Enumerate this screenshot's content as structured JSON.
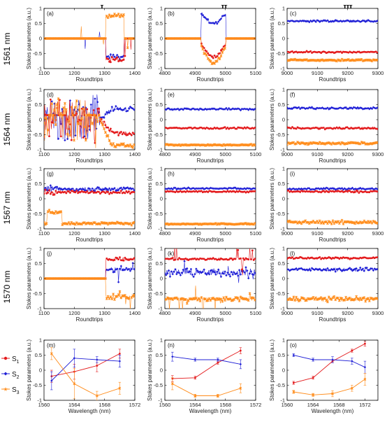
{
  "figure": {
    "columns": [
      "Ⅰ",
      "Ⅱ",
      "Ⅲ"
    ],
    "rows": [
      "1561 nm",
      "1564 nm",
      "1567 nm",
      "1570 nm"
    ],
    "legend": [
      {
        "base": "S",
        "sub": "1",
        "color": "#e31a1c",
        "marker": "circle"
      },
      {
        "base": "S",
        "sub": "2",
        "color": "#1f1fd6",
        "marker": "diamond"
      },
      {
        "base": "S",
        "sub": "3",
        "color": "#ff8c1a",
        "marker": "star"
      }
    ]
  },
  "colors": {
    "s1": "#e31a1c",
    "s2": "#1f1fd6",
    "s3": "#ff8c1a",
    "axis": "#000000"
  },
  "chart_data": [
    {
      "id": "a",
      "label": "(a)",
      "row": 0,
      "col": 0,
      "type": "scatter",
      "xlabel": "Roundtrips",
      "ylabel": "Stokes parameters (a.u.)",
      "xlim": [
        1100,
        1400
      ],
      "xticks": [
        1100,
        1200,
        1300,
        1400
      ],
      "ylim": [
        -1,
        1
      ],
      "yticks": [
        -1,
        -0.5,
        0,
        0.5,
        1
      ],
      "pattern": "c1a",
      "series": [
        {
          "key": "s1",
          "mean": 0,
          "noise": 0.1
        },
        {
          "key": "s2",
          "mean": 0,
          "noise": 0.1
        },
        {
          "key": "s3",
          "mean": 0,
          "noise": 0.1
        }
      ]
    },
    {
      "id": "b",
      "label": "(b)",
      "row": 0,
      "col": 1,
      "type": "scatter",
      "xlabel": "Roundtrips",
      "ylabel": "Stokes parameters (a.u.)",
      "xlim": [
        4800,
        5100
      ],
      "xticks": [
        4800,
        4900,
        5000,
        5100
      ],
      "ylim": [
        -1,
        1
      ],
      "yticks": [
        -1,
        -0.5,
        0,
        0.5,
        1
      ],
      "pattern": "c2a",
      "series": [
        {
          "key": "s1",
          "mean": -0.35,
          "noise": 0.1
        },
        {
          "key": "s2",
          "mean": 0.7,
          "noise": 0.15
        },
        {
          "key": "s3",
          "mean": -0.65,
          "noise": 0.1
        }
      ]
    },
    {
      "id": "c",
      "label": "(c)",
      "row": 0,
      "col": 2,
      "type": "scatter",
      "xlabel": "Roundtrips",
      "ylabel": "Stokes parameters (a.u.)",
      "xlim": [
        9000,
        9300
      ],
      "xticks": [
        9000,
        9100,
        9200,
        9300
      ],
      "ylim": [
        -1,
        1
      ],
      "yticks": [
        -1,
        -0.5,
        0,
        0.5,
        1
      ],
      "pattern": "flat",
      "series": [
        {
          "key": "s1",
          "mean": -0.45,
          "noise": 0.04
        },
        {
          "key": "s2",
          "mean": 0.58,
          "noise": 0.05
        },
        {
          "key": "s3",
          "mean": -0.72,
          "noise": 0.04
        }
      ]
    },
    {
      "id": "d",
      "label": "(d)",
      "row": 1,
      "col": 0,
      "type": "scatter",
      "xlabel": "Roundtrips",
      "ylabel": "Stokes parameters (a.u.)",
      "xlim": [
        1100,
        1400
      ],
      "xticks": [
        1100,
        1200,
        1300,
        1400
      ],
      "ylim": [
        -1,
        1
      ],
      "yticks": [
        -1,
        -0.5,
        0,
        0.5,
        1
      ],
      "pattern": "c1b",
      "series": [
        {
          "key": "s1",
          "mean": -0.45,
          "noise": 0.1
        },
        {
          "key": "s2",
          "mean": 0.35,
          "noise": 0.1
        },
        {
          "key": "s3",
          "mean": -0.85,
          "noise": 0.08
        }
      ]
    },
    {
      "id": "e",
      "label": "(e)",
      "row": 1,
      "col": 1,
      "type": "scatter",
      "xlabel": "Roundtrips",
      "ylabel": "Stokes parameters (a.u.)",
      "xlim": [
        4800,
        5100
      ],
      "xticks": [
        4800,
        4900,
        5000,
        5100
      ],
      "ylim": [
        -1,
        1
      ],
      "yticks": [
        -1,
        -0.5,
        0,
        0.5,
        1
      ],
      "pattern": "flat",
      "series": [
        {
          "key": "s1",
          "mean": -0.28,
          "noise": 0.04
        },
        {
          "key": "s2",
          "mean": 0.35,
          "noise": 0.04
        },
        {
          "key": "s3",
          "mean": -0.84,
          "noise": 0.03
        }
      ]
    },
    {
      "id": "f",
      "label": "(f)",
      "row": 1,
      "col": 2,
      "type": "scatter",
      "xlabel": "Roundtrips",
      "ylabel": "Stokes parameters (a.u.)",
      "xlim": [
        9000,
        9300
      ],
      "xticks": [
        9000,
        9100,
        9200,
        9300
      ],
      "ylim": [
        -1,
        1
      ],
      "yticks": [
        -1,
        -0.5,
        0,
        0.5,
        1
      ],
      "pattern": "flat",
      "series": [
        {
          "key": "s1",
          "mean": -0.28,
          "noise": 0.05
        },
        {
          "key": "s2",
          "mean": 0.38,
          "noise": 0.05
        },
        {
          "key": "s3",
          "mean": -0.78,
          "noise": 0.06
        }
      ]
    },
    {
      "id": "g",
      "label": "(g)",
      "row": 2,
      "col": 0,
      "type": "scatter",
      "xlabel": "Roundtrips",
      "ylabel": "Stokes parameters (a.u.)",
      "xlim": [
        1100,
        1400
      ],
      "xticks": [
        1100,
        1200,
        1300,
        1400
      ],
      "ylim": [
        -1,
        1
      ],
      "yticks": [
        -1,
        -0.5,
        0,
        0.5,
        1
      ],
      "pattern": "c1c",
      "series": [
        {
          "key": "s1",
          "mean": 0.22,
          "noise": 0.07
        },
        {
          "key": "s2",
          "mean": 0.32,
          "noise": 0.08
        },
        {
          "key": "s3",
          "mean": -0.82,
          "noise": 0.06
        }
      ]
    },
    {
      "id": "h",
      "label": "(h)",
      "row": 2,
      "col": 1,
      "type": "scatter",
      "xlabel": "Roundtrips",
      "ylabel": "Stokes parameters (a.u.)",
      "xlim": [
        4800,
        5100
      ],
      "xticks": [
        4800,
        4900,
        5000,
        5100
      ],
      "ylim": [
        -1,
        1
      ],
      "yticks": [
        -1,
        -0.5,
        0,
        0.5,
        1
      ],
      "pattern": "flat",
      "series": [
        {
          "key": "s1",
          "mean": 0.24,
          "noise": 0.04
        },
        {
          "key": "s2",
          "mean": 0.34,
          "noise": 0.04
        },
        {
          "key": "s3",
          "mean": -0.84,
          "noise": 0.03
        }
      ]
    },
    {
      "id": "i",
      "label": "(i)",
      "row": 2,
      "col": 2,
      "type": "scatter",
      "xlabel": "Roundtrips",
      "ylabel": "Stokes parameters (a.u.)",
      "xlim": [
        9000,
        9300
      ],
      "xticks": [
        9000,
        9100,
        9200,
        9300
      ],
      "ylim": [
        -1,
        1
      ],
      "yticks": [
        -1,
        -0.5,
        0,
        0.5,
        1
      ],
      "pattern": "flat",
      "series": [
        {
          "key": "s1",
          "mean": 0.24,
          "noise": 0.05
        },
        {
          "key": "s2",
          "mean": 0.33,
          "noise": 0.05
        },
        {
          "key": "s3",
          "mean": -0.78,
          "noise": 0.08
        }
      ]
    },
    {
      "id": "j",
      "label": "(j)",
      "row": 3,
      "col": 0,
      "type": "scatter",
      "xlabel": "Roundtrips",
      "ylabel": "Stokes parameters (a.u.)",
      "xlim": [
        1100,
        1400
      ],
      "xticks": [
        1100,
        1200,
        1300,
        1400
      ],
      "ylim": [
        -1,
        1
      ],
      "yticks": [
        -1,
        -0.5,
        0,
        0.5,
        1
      ],
      "pattern": "c1d",
      "series": [
        {
          "key": "s1",
          "mean": 0.65,
          "noise": 0.1
        },
        {
          "key": "s2",
          "mean": 0.3,
          "noise": 0.12
        },
        {
          "key": "s3",
          "mean": -0.6,
          "noise": 0.15
        }
      ]
    },
    {
      "id": "k",
      "label": "(k)",
      "row": 3,
      "col": 1,
      "type": "scatter",
      "xlabel": "Roundtrips",
      "ylabel": "Stokes parameters (a.u.)",
      "xlim": [
        4800,
        5100
      ],
      "xticks": [
        4800,
        4900,
        5000,
        5100
      ],
      "ylim": [
        -1,
        1
      ],
      "yticks": [
        -1,
        -0.5,
        0,
        0.5,
        1
      ],
      "pattern": "noisy",
      "series": [
        {
          "key": "s1",
          "mean": 0.65,
          "noise": 0.06
        },
        {
          "key": "s2",
          "mean": 0.2,
          "noise": 0.18
        },
        {
          "key": "s3",
          "mean": -0.68,
          "noise": 0.1
        }
      ]
    },
    {
      "id": "l",
      "label": "(l)",
      "row": 3,
      "col": 2,
      "type": "scatter",
      "xlabel": "Roundtrips",
      "ylabel": "Stokes parameters (a.u.)",
      "xlim": [
        9000,
        9300
      ],
      "xticks": [
        9000,
        9100,
        9200,
        9300
      ],
      "ylim": [
        -1,
        1
      ],
      "yticks": [
        -1,
        -0.5,
        0,
        0.5,
        1
      ],
      "pattern": "flat",
      "series": [
        {
          "key": "s1",
          "mean": 0.68,
          "noise": 0.05
        },
        {
          "key": "s2",
          "mean": 0.3,
          "noise": 0.08
        },
        {
          "key": "s3",
          "mean": -0.68,
          "noise": 0.1
        }
      ]
    },
    {
      "id": "m",
      "label": "(m)",
      "row": 4,
      "col": 0,
      "type": "line",
      "xlabel": "Wavelength (nm)",
      "ylabel": "Stokes parameters (a.u.)",
      "xlim": [
        1560,
        1572
      ],
      "xticks": [
        1560,
        1564,
        1568,
        1572
      ],
      "ylim": [
        -1,
        1
      ],
      "yticks": [
        -1,
        -0.5,
        0,
        0.5,
        1
      ],
      "x": [
        1561,
        1564,
        1567,
        1570
      ],
      "series": [
        {
          "key": "s1",
          "values": [
            -0.2,
            -0.05,
            0.15,
            0.55
          ],
          "errors": [
            0.2,
            0.25,
            0.2,
            0.15
          ]
        },
        {
          "key": "s2",
          "values": [
            -0.35,
            0.4,
            0.35,
            0.3
          ],
          "errors": [
            0.3,
            0.3,
            0.1,
            0.2
          ]
        },
        {
          "key": "s3",
          "values": [
            0.55,
            -0.45,
            -0.85,
            -0.6
          ],
          "errors": [
            0.2,
            0.5,
            0.15,
            0.2
          ]
        }
      ]
    },
    {
      "id": "n",
      "label": "(n)",
      "row": 4,
      "col": 1,
      "type": "line",
      "xlabel": "Wavelength (nm)",
      "ylabel": "Stokes parameters (a.u.)",
      "xlim": [
        1560,
        1572
      ],
      "xticks": [
        1560,
        1564,
        1568,
        1572
      ],
      "ylim": [
        -1,
        1
      ],
      "yticks": [
        -1,
        -0.5,
        0,
        0.5,
        1
      ],
      "x": [
        1561,
        1564,
        1567,
        1570
      ],
      "series": [
        {
          "key": "s1",
          "values": [
            -0.28,
            -0.25,
            0.25,
            0.65
          ],
          "errors": [
            0.1,
            0.05,
            0.05,
            0.1
          ]
        },
        {
          "key": "s2",
          "values": [
            0.45,
            0.35,
            0.35,
            0.2
          ],
          "errors": [
            0.15,
            0.05,
            0.05,
            0.15
          ]
        },
        {
          "key": "s3",
          "values": [
            -0.45,
            -0.85,
            -0.85,
            -0.6
          ],
          "errors": [
            0.2,
            0.05,
            0.05,
            0.15
          ]
        }
      ]
    },
    {
      "id": "o",
      "label": "(o)",
      "row": 4,
      "col": 2,
      "type": "line",
      "xlabel": "Wavelength (nm)",
      "ylabel": "Stokes parameters (a.u.)",
      "xlim": [
        1560,
        1574
      ],
      "xticks": [
        1560,
        1564,
        1568,
        1572
      ],
      "ylim": [
        -1,
        1
      ],
      "yticks": [
        -1,
        -0.5,
        0,
        0.5,
        1
      ],
      "x": [
        1561,
        1564,
        1567,
        1570,
        1572
      ],
      "series": [
        {
          "key": "s1",
          "values": [
            -0.42,
            -0.25,
            0.3,
            0.65,
            0.88
          ],
          "errors": [
            0.05,
            0.05,
            0.05,
            0.05,
            0.08
          ]
        },
        {
          "key": "s2",
          "values": [
            0.5,
            0.35,
            0.35,
            0.3,
            0.1
          ],
          "errors": [
            0.05,
            0.05,
            0.1,
            0.1,
            0.2
          ]
        },
        {
          "key": "s3",
          "values": [
            -0.72,
            -0.82,
            -0.78,
            -0.6,
            -0.3
          ],
          "errors": [
            0.05,
            0.05,
            0.1,
            0.1,
            0.2
          ]
        }
      ]
    }
  ]
}
